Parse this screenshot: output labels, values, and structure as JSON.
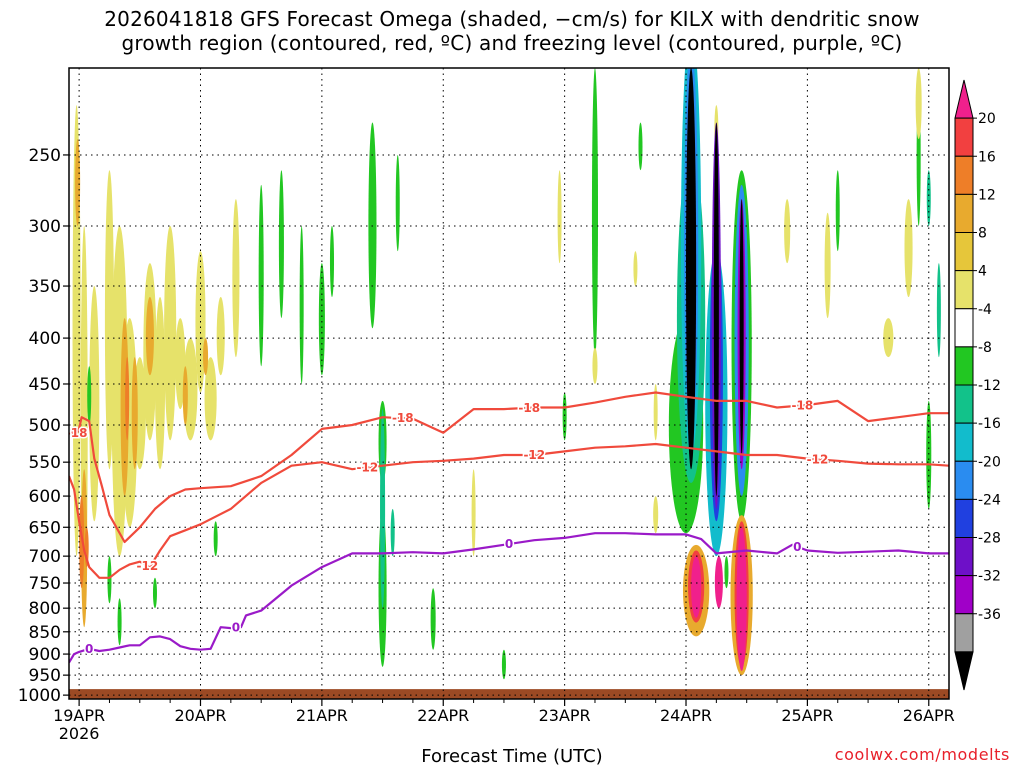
{
  "title_line1": "2026041818 GFS Forecast Omega (shaded, −cm/s) for KILX with dendritic snow",
  "title_line2": "growth region (contoured, red, ºC) and freezing level (contoured, purple, ºC)",
  "credit": "coolwx.com/modelts",
  "chart_data": {
    "type": "heatmap",
    "title": "2026041818 GFS Forecast Omega (shaded, −cm/s) for KILX with dendritic snow growth region (contoured, red, ºC) and freezing level (contoured, purple, ºC)",
    "xlabel": "Forecast Time (UTC)",
    "ylabel": "",
    "x_ticks": [
      "19APR",
      "20APR",
      "21APR",
      "22APR",
      "23APR",
      "24APR",
      "25APR",
      "26APR"
    ],
    "x_tick_year": "2026",
    "x_range_hours_after_19APR_00Z": [
      -2,
      172
    ],
    "y_ticks": [
      250,
      300,
      350,
      400,
      450,
      500,
      550,
      600,
      650,
      700,
      750,
      800,
      850,
      900,
      950,
      1000
    ],
    "y_range_hPa": [
      1010,
      200
    ],
    "y_scale": "log pressure",
    "grid": true,
    "colorbar": {
      "labels": [
        "20",
        "16",
        "12",
        "8",
        "4",
        "-4",
        "-8",
        "-12",
        "-16",
        "-20",
        "-24",
        "-28",
        "-32",
        "-36"
      ],
      "colors": [
        "#f0208c",
        "#f24040",
        "#ee7e28",
        "#e8aa2e",
        "#e6c63a",
        "#e6e26a",
        "#ffffff",
        "#22c722",
        "#12c28a",
        "#12bccc",
        "#2a8cf0",
        "#2040e0",
        "#6e10c8",
        "#a000c8",
        "#a0a0a0",
        "#000000"
      ]
    },
    "contours": [
      {
        "name": "-18",
        "color": "#f04a3c",
        "points": [
          [
            -1.5,
            505
          ],
          [
            -1,
            515
          ],
          [
            0,
            505
          ],
          [
            0.5,
            490
          ],
          [
            2,
            495
          ],
          [
            3,
            545
          ],
          [
            4.5,
            585
          ],
          [
            6,
            630
          ],
          [
            9,
            675
          ],
          [
            12,
            650
          ],
          [
            15,
            620
          ],
          [
            18,
            600
          ],
          [
            21,
            590
          ],
          [
            24,
            588
          ],
          [
            30,
            585
          ],
          [
            36,
            570
          ],
          [
            42,
            540
          ],
          [
            48,
            505
          ],
          [
            54,
            500
          ],
          [
            60,
            490
          ],
          [
            66,
            492
          ],
          [
            72,
            510
          ],
          [
            78,
            480
          ],
          [
            84,
            480
          ],
          [
            90,
            478
          ],
          [
            96,
            478
          ],
          [
            102,
            472
          ],
          [
            108,
            465
          ],
          [
            114,
            460
          ],
          [
            120,
            465
          ],
          [
            126,
            470
          ],
          [
            132,
            470
          ],
          [
            138,
            478
          ],
          [
            144,
            475
          ],
          [
            150,
            470
          ],
          [
            156,
            495
          ],
          [
            162,
            490
          ],
          [
            168,
            485
          ],
          [
            172,
            485
          ]
        ],
        "labels": [
          [
            -0.5,
            "-18"
          ],
          [
            64,
            "-18"
          ],
          [
            89,
            "-18"
          ],
          [
            143,
            "-18"
          ]
        ]
      },
      {
        "name": "-12",
        "color": "#f04a3c",
        "points": [
          [
            -2,
            570
          ],
          [
            -1,
            590
          ],
          [
            0,
            640
          ],
          [
            1,
            690
          ],
          [
            2,
            720
          ],
          [
            4,
            740
          ],
          [
            6,
            740
          ],
          [
            8,
            725
          ],
          [
            10,
            715
          ],
          [
            12,
            710
          ],
          [
            14,
            720
          ],
          [
            16,
            690
          ],
          [
            18,
            665
          ],
          [
            21,
            655
          ],
          [
            24,
            645
          ],
          [
            30,
            620
          ],
          [
            36,
            580
          ],
          [
            42,
            555
          ],
          [
            48,
            550
          ],
          [
            54,
            560
          ],
          [
            60,
            555
          ],
          [
            66,
            550
          ],
          [
            72,
            548
          ],
          [
            78,
            545
          ],
          [
            84,
            540
          ],
          [
            90,
            540
          ],
          [
            96,
            535
          ],
          [
            102,
            530
          ],
          [
            108,
            528
          ],
          [
            114,
            525
          ],
          [
            120,
            530
          ],
          [
            126,
            535
          ],
          [
            132,
            540
          ],
          [
            138,
            540
          ],
          [
            144,
            545
          ],
          [
            150,
            548
          ],
          [
            156,
            552
          ],
          [
            162,
            553
          ],
          [
            168,
            553
          ],
          [
            172,
            555
          ]
        ],
        "labels": [
          [
            13.5,
            "-12"
          ],
          [
            57,
            "-12"
          ],
          [
            90,
            "-12"
          ],
          [
            146,
            "-12"
          ]
        ]
      },
      {
        "name": "0",
        "color": "#9a1ac8",
        "points": [
          [
            -2,
            920
          ],
          [
            -1,
            900
          ],
          [
            0,
            895
          ],
          [
            2,
            888
          ],
          [
            4,
            893
          ],
          [
            6,
            890
          ],
          [
            8,
            885
          ],
          [
            10,
            880
          ],
          [
            12,
            880
          ],
          [
            14,
            862
          ],
          [
            16,
            860
          ],
          [
            18,
            866
          ],
          [
            20,
            882
          ],
          [
            22,
            888
          ],
          [
            24,
            890
          ],
          [
            26,
            888
          ],
          [
            28,
            840
          ],
          [
            30,
            842
          ],
          [
            32,
            840
          ],
          [
            33,
            815
          ],
          [
            36,
            805
          ],
          [
            42,
            755
          ],
          [
            48,
            720
          ],
          [
            54,
            695
          ],
          [
            60,
            695
          ],
          [
            66,
            693
          ],
          [
            72,
            695
          ],
          [
            78,
            688
          ],
          [
            84,
            680
          ],
          [
            90,
            672
          ],
          [
            96,
            668
          ],
          [
            102,
            660
          ],
          [
            108,
            660
          ],
          [
            114,
            662
          ],
          [
            120,
            662
          ],
          [
            123,
            670
          ],
          [
            126,
            695
          ],
          [
            132,
            690
          ],
          [
            138,
            695
          ],
          [
            141,
            680
          ],
          [
            144,
            690
          ],
          [
            150,
            694
          ],
          [
            156,
            692
          ],
          [
            162,
            690
          ],
          [
            168,
            695
          ],
          [
            172,
            695
          ]
        ],
        "labels": [
          [
            2,
            "0"
          ],
          [
            31,
            "0"
          ],
          [
            85,
            "0"
          ],
          [
            142,
            "0"
          ]
        ]
      }
    ],
    "surface_fill": "#9c4a24"
  }
}
